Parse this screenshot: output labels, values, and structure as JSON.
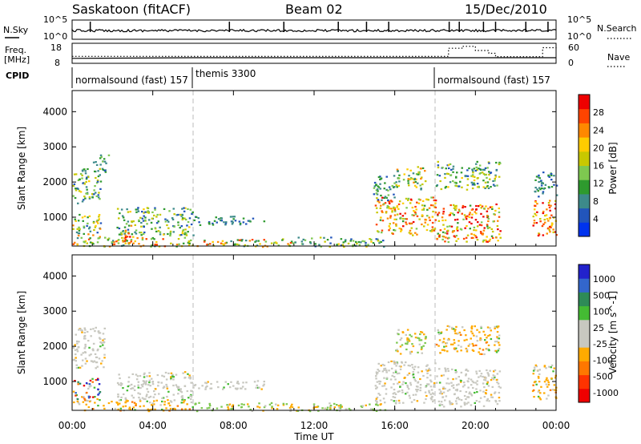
{
  "header": {
    "station": "Saskatoon (fitACF)",
    "beam": "Beam 02",
    "date": "15/Dec/2010"
  },
  "left_labels": {
    "nsky": "N.Sky",
    "freq_line1": "Freq.",
    "freq_line2": "[MHz]",
    "cpid": "CPID"
  },
  "right_labels": {
    "nsearch": "N.Search",
    "nave": "Nave"
  },
  "colors": {
    "power_scale": [
      "#0033ee",
      "#2255bb",
      "#3d8a8a",
      "#2e9a2e",
      "#7ec850",
      "#c8c800",
      "#ffcc00",
      "#ff8800",
      "#ff4400",
      "#ee0000"
    ],
    "velocity_scale": [
      "#2222cc",
      "#3366cc",
      "#2e8b57",
      "#44bb33",
      "#c8c8c0",
      "#c8c8c0",
      "#ffaa00",
      "#ff7700",
      "#ff3300",
      "#ee0000"
    ]
  },
  "chart_data": [
    {
      "type": "line",
      "panel": "N.Sky / N.Search",
      "left_ticks": [
        "10^5",
        "10^0"
      ],
      "right_ticks": [
        "10^5",
        "10^0"
      ],
      "series": [
        {
          "name": "N.Sky"
        },
        {
          "name": "N.Search"
        }
      ]
    },
    {
      "type": "line",
      "panel": "Freq. / Nave",
      "left_ticks": [
        "18",
        "8"
      ],
      "right_ticks": [
        "60",
        "0"
      ],
      "series": [
        {
          "name": "Freq.",
          "x": [
            "00:00",
            "06:00",
            "18:00",
            "24:00"
          ],
          "y": [
            10.0,
            10.4,
            10.4,
            10.4
          ]
        },
        {
          "name": "Nave",
          "x": [
            "00:00",
            "18:00",
            "18:40",
            "19:20",
            "20:00",
            "20:40",
            "21:00",
            "23:20",
            "24:00"
          ],
          "y": [
            19,
            19,
            48,
            55,
            40,
            30,
            18,
            50,
            40
          ]
        }
      ]
    },
    {
      "type": "table",
      "panel": "CPID",
      "segments": [
        {
          "start": "00:00",
          "end": "06:00",
          "label": "normalsound (fast) 157"
        },
        {
          "start": "06:00",
          "end": "18:00",
          "label": "themis 3300"
        },
        {
          "start": "18:00",
          "end": "24:00",
          "label": "normalsound (fast) 157"
        }
      ]
    },
    {
      "type": "heatmap",
      "panel": "Power",
      "ylabel": "Slant Range [km]",
      "yticks": [
        1000,
        2000,
        3000,
        4000
      ],
      "ylim": [
        180,
        4600
      ],
      "colorbar_label": "Power [dB]",
      "colorbar_ticks": [
        4,
        8,
        12,
        16,
        20,
        24,
        28
      ],
      "colorbar_range": [
        0,
        32
      ],
      "regions": [
        {
          "t0": 0.0,
          "t1": 6.0,
          "r0": 180,
          "r1": 450,
          "v0": 8,
          "v1": 28
        },
        {
          "t0": 0.0,
          "t1": 1.4,
          "r0": 400,
          "r1": 1100,
          "v0": 4,
          "v1": 24
        },
        {
          "t0": 0.0,
          "t1": 1.4,
          "r0": 1400,
          "r1": 2400,
          "v0": 4,
          "v1": 20
        },
        {
          "t0": 1.0,
          "t1": 1.8,
          "r0": 2300,
          "r1": 2800,
          "v0": 4,
          "v1": 16
        },
        {
          "t0": 2.2,
          "t1": 6.0,
          "r0": 500,
          "r1": 1300,
          "v0": 4,
          "v1": 20
        },
        {
          "t0": 2.6,
          "t1": 3.1,
          "r0": 250,
          "r1": 800,
          "v0": 20,
          "v1": 30
        },
        {
          "t0": 6.0,
          "t1": 11.0,
          "r0": 180,
          "r1": 400,
          "v0": 8,
          "v1": 28
        },
        {
          "t0": 6.0,
          "t1": 9.5,
          "r0": 800,
          "r1": 1050,
          "v0": 4,
          "v1": 12
        },
        {
          "t0": 11.0,
          "t1": 15.5,
          "r0": 180,
          "r1": 450,
          "v0": 4,
          "v1": 20
        },
        {
          "t0": 15.0,
          "t1": 18.0,
          "r0": 500,
          "r1": 1600,
          "v0": 12,
          "v1": 30
        },
        {
          "t0": 14.8,
          "t1": 16.0,
          "r0": 1500,
          "r1": 2200,
          "v0": 4,
          "v1": 16
        },
        {
          "t0": 16.0,
          "t1": 17.5,
          "r0": 1800,
          "r1": 2500,
          "v0": 8,
          "v1": 24
        },
        {
          "t0": 18.0,
          "t1": 21.2,
          "r0": 300,
          "r1": 1400,
          "v0": 12,
          "v1": 32
        },
        {
          "t0": 18.0,
          "t1": 21.2,
          "r0": 1800,
          "r1": 2600,
          "v0": 4,
          "v1": 20
        },
        {
          "t0": 22.8,
          "t1": 24.0,
          "r0": 500,
          "r1": 1500,
          "v0": 16,
          "v1": 32
        },
        {
          "t0": 22.8,
          "t1": 24.0,
          "r0": 1600,
          "r1": 2300,
          "v0": 4,
          "v1": 12
        }
      ]
    },
    {
      "type": "heatmap",
      "panel": "Velocity",
      "ylabel": "Slant Range [km]",
      "yticks": [
        1000,
        2000,
        3000,
        4000
      ],
      "ylim": [
        180,
        4600
      ],
      "colorbar_label": "Velocity [m s^-1]",
      "colorbar_ticks": [
        1000,
        500,
        100,
        25,
        -25,
        -100,
        -500,
        -1000
      ],
      "regions": [
        {
          "t0": 0.0,
          "t1": 6.0,
          "r0": 180,
          "r1": 500,
          "kind": "orange"
        },
        {
          "t0": 0.0,
          "t1": 1.4,
          "r0": 500,
          "r1": 1100,
          "kind": "mixed"
        },
        {
          "t0": 0.0,
          "t1": 1.6,
          "r0": 1400,
          "r1": 2600,
          "kind": "gray"
        },
        {
          "t0": 2.2,
          "t1": 6.0,
          "r0": 500,
          "r1": 1300,
          "kind": "gray"
        },
        {
          "t0": 6.0,
          "t1": 15.5,
          "r0": 180,
          "r1": 420,
          "kind": "green"
        },
        {
          "t0": 6.0,
          "t1": 9.5,
          "r0": 800,
          "r1": 1050,
          "kind": "gray"
        },
        {
          "t0": 15.0,
          "t1": 18.0,
          "r0": 400,
          "r1": 1600,
          "kind": "gray"
        },
        {
          "t0": 16.0,
          "t1": 17.5,
          "r0": 1800,
          "r1": 2500,
          "kind": "green"
        },
        {
          "t0": 18.0,
          "t1": 21.2,
          "r0": 300,
          "r1": 1400,
          "kind": "gray"
        },
        {
          "t0": 18.0,
          "t1": 21.2,
          "r0": 1800,
          "r1": 2600,
          "kind": "orange"
        },
        {
          "t0": 22.8,
          "t1": 24.0,
          "r0": 500,
          "r1": 1500,
          "kind": "orange"
        }
      ]
    }
  ],
  "time_axis": {
    "label": "Time UT",
    "ticks": [
      "00:00",
      "04:00",
      "08:00",
      "12:00",
      "16:00",
      "20:00",
      "00:00"
    ]
  }
}
